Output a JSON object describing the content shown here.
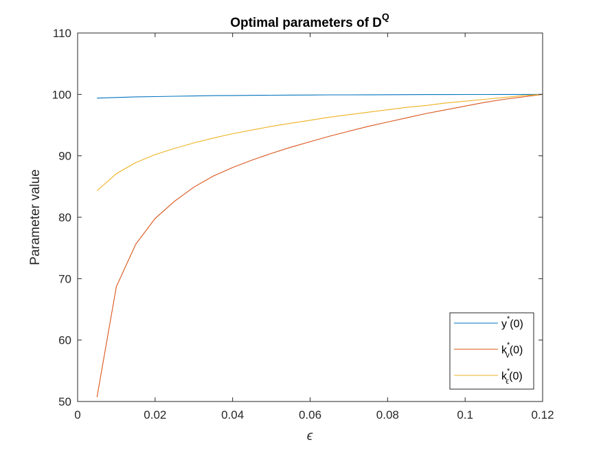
{
  "chart_data": {
    "type": "line",
    "title": "Optimal parameters of D",
    "title_superscript": "Q",
    "xlabel": "ϵ",
    "ylabel": "Parameter value",
    "xlim": [
      0,
      0.12
    ],
    "ylim": [
      50,
      110
    ],
    "xticks": [
      0,
      0.02,
      0.04,
      0.06,
      0.08,
      0.1,
      0.12
    ],
    "xtick_labels": [
      "0",
      "0.02",
      "0.04",
      "0.06",
      "0.08",
      "0.1",
      "0.12"
    ],
    "yticks": [
      50,
      60,
      70,
      80,
      90,
      100,
      110
    ],
    "ytick_labels": [
      "50",
      "60",
      "70",
      "80",
      "90",
      "100",
      "110"
    ],
    "grid": false,
    "legend_position": "bottom-right",
    "series": [
      {
        "name": "y*(0)",
        "label_main": "y",
        "label_sup": "*",
        "label_sub": "",
        "label_tail": "(0)",
        "color": "#0072BD",
        "x": [
          0.005,
          0.01,
          0.015,
          0.02,
          0.025,
          0.03,
          0.035,
          0.04,
          0.045,
          0.05,
          0.055,
          0.06,
          0.065,
          0.07,
          0.075,
          0.08,
          0.085,
          0.09,
          0.095,
          0.1,
          0.105,
          0.11,
          0.115,
          0.12
        ],
        "y": [
          99.4,
          99.5,
          99.6,
          99.65,
          99.7,
          99.75,
          99.8,
          99.82,
          99.85,
          99.87,
          99.89,
          99.9,
          99.92,
          99.93,
          99.94,
          99.95,
          99.96,
          99.97,
          99.97,
          99.98,
          99.98,
          99.99,
          99.99,
          100.0
        ]
      },
      {
        "name": "kv*(0)",
        "label_main": "k",
        "label_sup": "*",
        "label_sub": "v",
        "label_tail": "(0)",
        "color": "#D95319",
        "x": [
          0.005,
          0.01,
          0.015,
          0.02,
          0.025,
          0.03,
          0.035,
          0.04,
          0.045,
          0.05,
          0.055,
          0.06,
          0.065,
          0.07,
          0.075,
          0.08,
          0.085,
          0.09,
          0.095,
          0.1,
          0.105,
          0.11,
          0.115,
          0.12
        ],
        "y": [
          50.7,
          68.7,
          75.6,
          79.8,
          82.6,
          84.9,
          86.7,
          88.1,
          89.3,
          90.4,
          91.4,
          92.3,
          93.2,
          94.0,
          94.8,
          95.5,
          96.2,
          96.9,
          97.5,
          98.1,
          98.7,
          99.2,
          99.6,
          100.0
        ]
      },
      {
        "name": "kϵ*(0)",
        "label_main": "k",
        "label_sup": "*",
        "label_sub": "ϵ",
        "label_tail": "(0)",
        "color": "#EDB120",
        "x": [
          0.005,
          0.01,
          0.015,
          0.02,
          0.025,
          0.03,
          0.035,
          0.04,
          0.045,
          0.05,
          0.055,
          0.06,
          0.065,
          0.07,
          0.075,
          0.08,
          0.085,
          0.09,
          0.095,
          0.1,
          0.105,
          0.11,
          0.115,
          0.12
        ],
        "y": [
          84.3,
          87.1,
          88.9,
          90.2,
          91.2,
          92.1,
          92.9,
          93.6,
          94.2,
          94.8,
          95.3,
          95.8,
          96.3,
          96.7,
          97.1,
          97.5,
          97.9,
          98.2,
          98.6,
          98.9,
          99.2,
          99.5,
          99.8,
          100.0
        ]
      }
    ]
  }
}
